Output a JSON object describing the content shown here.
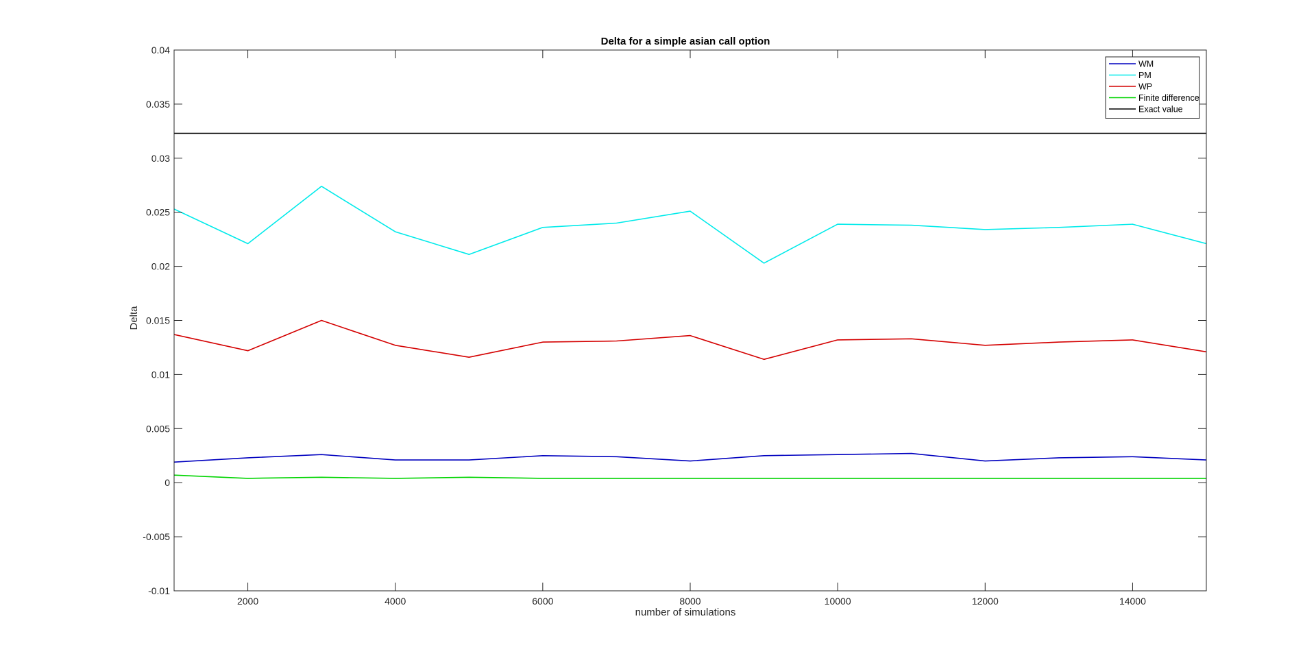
{
  "chart_data": {
    "type": "line",
    "title": "Delta for a simple asian call option",
    "xlabel": "number of simulations",
    "ylabel": "Delta",
    "xlim": [
      1000,
      15000
    ],
    "ylim": [
      -0.01,
      0.04
    ],
    "xticks": [
      2000,
      4000,
      6000,
      8000,
      10000,
      12000,
      14000
    ],
    "xtick_labels": [
      "2000",
      "4000",
      "6000",
      "8000",
      "10000",
      "12000",
      "14000"
    ],
    "yticks": [
      -0.01,
      -0.005,
      0,
      0.005,
      0.01,
      0.015,
      0.02,
      0.025,
      0.03,
      0.035,
      0.04
    ],
    "ytick_labels": [
      "-0.01",
      "-0.005",
      "0",
      "0.005",
      "0.01",
      "0.015",
      "0.02",
      "0.025",
      "0.03",
      "0.035",
      "0.04"
    ],
    "grid": false,
    "legend_position": "top-right",
    "x": [
      1000,
      2000,
      3000,
      4000,
      5000,
      6000,
      7000,
      8000,
      9000,
      10000,
      11000,
      12000,
      13000,
      14000,
      15000
    ],
    "series": [
      {
        "name": "WM",
        "color": "#0000bf",
        "values": [
          0.0019,
          0.0023,
          0.0026,
          0.0021,
          0.0021,
          0.0025,
          0.0024,
          0.002,
          0.0025,
          0.0026,
          0.0027,
          0.002,
          0.0023,
          0.0024,
          0.0021
        ]
      },
      {
        "name": "PM",
        "color": "#00eaea",
        "values": [
          0.0253,
          0.0221,
          0.0274,
          0.0232,
          0.0211,
          0.0236,
          0.024,
          0.0251,
          0.0203,
          0.0239,
          0.0238,
          0.0234,
          0.0236,
          0.0239,
          0.0221
        ]
      },
      {
        "name": "WP",
        "color": "#d40000",
        "values": [
          0.0137,
          0.0122,
          0.015,
          0.0127,
          0.0116,
          0.013,
          0.0131,
          0.0136,
          0.0114,
          0.0132,
          0.0133,
          0.0127,
          0.013,
          0.0132,
          0.0121
        ]
      },
      {
        "name": "Finite difference",
        "color": "#00d400",
        "values": [
          0.0007,
          0.0004,
          0.0005,
          0.0004,
          0.0005,
          0.0004,
          0.0004,
          0.0004,
          0.0004,
          0.0004,
          0.0004,
          0.0004,
          0.0004,
          0.0004,
          0.0004
        ]
      },
      {
        "name": "Exact value",
        "color": "#000000",
        "values": [
          0.0323,
          0.0323,
          0.0323,
          0.0323,
          0.0323,
          0.0323,
          0.0323,
          0.0323,
          0.0323,
          0.0323,
          0.0323,
          0.0323,
          0.0323,
          0.0323,
          0.0323
        ]
      }
    ]
  }
}
